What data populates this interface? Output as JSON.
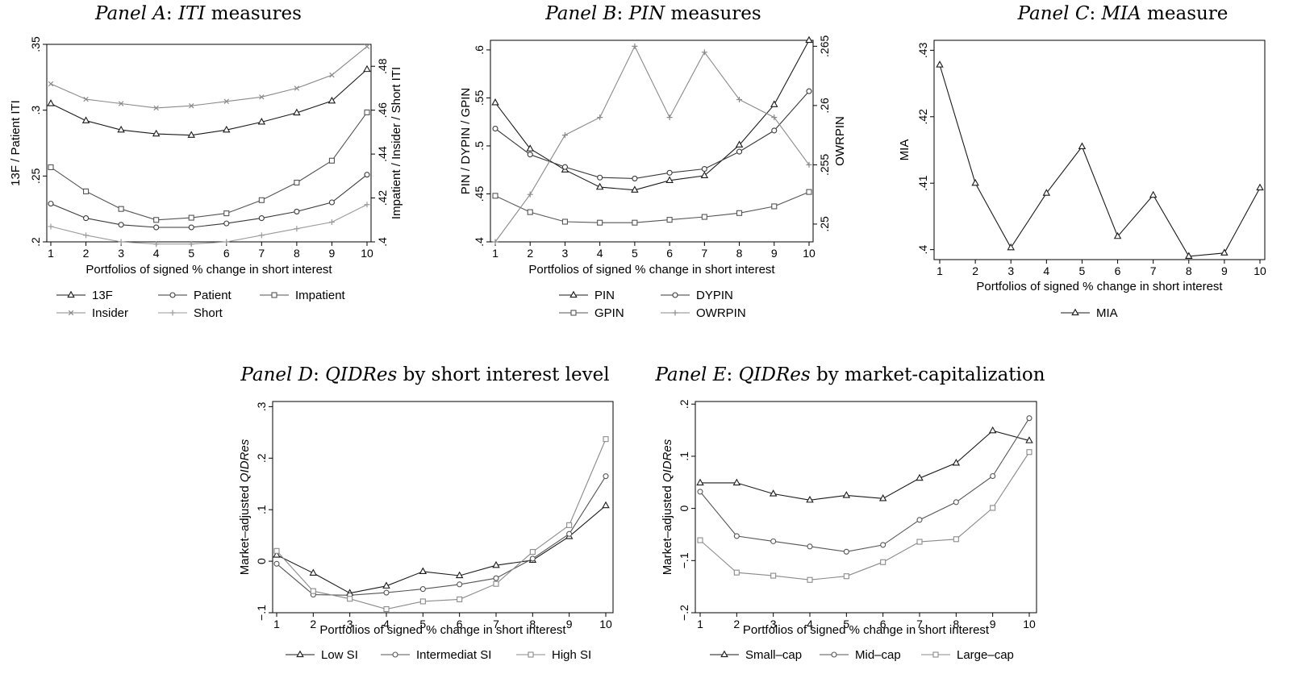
{
  "chart_data": [
    {
      "id": "A",
      "type": "line",
      "title_parts": [
        [
          "Panel A",
          true
        ],
        [
          ": ",
          false
        ],
        [
          "ITI",
          true
        ],
        [
          " measures",
          false
        ]
      ],
      "xlabel": "Portfolios of signed % change in short interest",
      "ylabel": "13F / Patient ITI",
      "y2label": "Impatient / Insider / Short ITI",
      "x": [
        1,
        2,
        3,
        4,
        5,
        6,
        7,
        8,
        9,
        10
      ],
      "xticks": [
        "1",
        "2",
        "3",
        "4",
        "5",
        "6",
        "7",
        "8",
        "9",
        "10"
      ],
      "ylim": [
        0.2,
        0.35
      ],
      "yticks": [
        [
          0.2,
          ".2"
        ],
        [
          0.25,
          ".25"
        ],
        [
          0.3,
          ".3"
        ],
        [
          0.35,
          ".35"
        ]
      ],
      "y2lim": [
        0.4,
        0.49
      ],
      "y2ticks": [
        [
          0.4,
          ".4"
        ],
        [
          0.42,
          ".42"
        ],
        [
          0.44,
          ".44"
        ],
        [
          0.46,
          ".46"
        ],
        [
          0.48,
          ".48"
        ]
      ],
      "series": [
        {
          "name": "13F",
          "marker": "triangle",
          "color": "#1a1a1a",
          "axis": "left",
          "values": [
            0.305,
            0.292,
            0.285,
            0.282,
            0.281,
            0.285,
            0.291,
            0.298,
            0.307,
            0.331
          ]
        },
        {
          "name": "Patient",
          "marker": "circle",
          "color": "#3a3a3a",
          "axis": "left",
          "values": [
            0.229,
            0.218,
            0.213,
            0.211,
            0.211,
            0.214,
            0.218,
            0.223,
            0.23,
            0.251
          ]
        },
        {
          "name": "Impatient",
          "marker": "square",
          "color": "#555555",
          "axis": "right",
          "values": [
            0.434,
            0.423,
            0.415,
            0.41,
            0.411,
            0.413,
            0.419,
            0.427,
            0.437,
            0.459
          ]
        },
        {
          "name": "Insider",
          "marker": "x",
          "color": "#8a8a8a",
          "axis": "right",
          "values": [
            0.472,
            0.465,
            0.463,
            0.461,
            0.462,
            0.464,
            0.466,
            0.47,
            0.476,
            0.489
          ]
        },
        {
          "name": "Short",
          "marker": "plus",
          "color": "#9a9a9a",
          "axis": "right",
          "values": [
            0.407,
            0.403,
            0.4,
            0.399,
            0.399,
            0.4,
            0.403,
            0.406,
            0.409,
            0.417
          ]
        }
      ],
      "legend_rows": [
        [
          "13F",
          "Patient",
          "Impatient"
        ],
        [
          "Insider",
          "Short"
        ]
      ]
    },
    {
      "id": "B",
      "type": "line",
      "title_parts": [
        [
          "Panel B",
          true
        ],
        [
          ": ",
          false
        ],
        [
          "PIN",
          true
        ],
        [
          " measures",
          false
        ]
      ],
      "xlabel": "Portfolios of signed % change in short interest",
      "ylabel": "PIN / DYPIN / GPIN",
      "y2label": "OWRPIN",
      "x": [
        1,
        2,
        3,
        4,
        5,
        6,
        7,
        8,
        9,
        10
      ],
      "xticks": [
        "1",
        "2",
        "3",
        "4",
        "5",
        "6",
        "7",
        "8",
        "9",
        "10"
      ],
      "ylim": [
        0.4,
        0.61
      ],
      "yticks": [
        [
          0.4,
          ".4"
        ],
        [
          0.45,
          ".45"
        ],
        [
          0.5,
          ".5"
        ],
        [
          0.55,
          ".55"
        ],
        [
          0.6,
          ".6"
        ]
      ],
      "y2lim": [
        0.2485,
        0.2655
      ],
      "y2ticks": [
        [
          0.25,
          ".25"
        ],
        [
          0.255,
          ".255"
        ],
        [
          0.26,
          ".26"
        ],
        [
          0.265,
          ".265"
        ]
      ],
      "series": [
        {
          "name": "PIN",
          "marker": "triangle",
          "color": "#1a1a1a",
          "axis": "left",
          "values": [
            0.545,
            0.497,
            0.475,
            0.457,
            0.454,
            0.464,
            0.469,
            0.501,
            0.543,
            0.61
          ]
        },
        {
          "name": "DYPIN",
          "marker": "circle",
          "color": "#3a3a3a",
          "axis": "left",
          "values": [
            0.518,
            0.491,
            0.478,
            0.467,
            0.466,
            0.472,
            0.476,
            0.494,
            0.516,
            0.557
          ]
        },
        {
          "name": "GPIN",
          "marker": "square",
          "color": "#555555",
          "axis": "left",
          "values": [
            0.448,
            0.431,
            0.421,
            0.42,
            0.42,
            0.423,
            0.426,
            0.43,
            0.437,
            0.452
          ]
        },
        {
          "name": "OWRPIN",
          "marker": "plus",
          "color": "#8a8a8a",
          "axis": "right",
          "values": [
            0.2485,
            0.2525,
            0.2575,
            0.259,
            0.265,
            0.259,
            0.2645,
            0.2605,
            0.259,
            0.255
          ]
        }
      ],
      "legend_rows": [
        [
          "PIN",
          "DYPIN"
        ],
        [
          "GPIN",
          "OWRPIN"
        ]
      ]
    },
    {
      "id": "C",
      "type": "line",
      "title_parts": [
        [
          "Panel C",
          true
        ],
        [
          ": ",
          false
        ],
        [
          "MIA",
          true
        ],
        [
          " measure",
          false
        ]
      ],
      "xlabel": "Portfolios of signed % change in short interest",
      "ylabel": "MIA",
      "x": [
        1,
        2,
        3,
        4,
        5,
        6,
        7,
        8,
        9,
        10
      ],
      "xticks": [
        "1",
        "2",
        "3",
        "4",
        "5",
        "6",
        "7",
        "8",
        "9",
        "10"
      ],
      "ylim": [
        0.3985,
        0.4315
      ],
      "yticks": [
        [
          0.4,
          ".4"
        ],
        [
          0.41,
          ".41"
        ],
        [
          0.42,
          ".42"
        ],
        [
          0.43,
          ".43"
        ]
      ],
      "series": [
        {
          "name": "MIA",
          "marker": "triangle",
          "color": "#1a1a1a",
          "axis": "left",
          "values": [
            0.4278,
            0.41,
            0.4003,
            0.4085,
            0.4155,
            0.402,
            0.4082,
            0.399,
            0.3995,
            0.4093
          ]
        }
      ],
      "legend_rows": [
        [
          "MIA"
        ]
      ]
    },
    {
      "id": "D",
      "type": "line",
      "title_parts": [
        [
          "Panel D",
          true
        ],
        [
          ": ",
          false
        ],
        [
          "QIDRes",
          true
        ],
        [
          " by short interest level",
          false
        ]
      ],
      "xlabel": "Portfolios of signed % change in short interest",
      "ylabel_parts": [
        [
          "Market–adjusted ",
          false
        ],
        [
          "QIDRes",
          true
        ]
      ],
      "x": [
        1,
        2,
        3,
        4,
        5,
        6,
        7,
        8,
        9,
        10
      ],
      "xticks": [
        "1",
        "2",
        "3",
        "4",
        "5",
        "6",
        "7",
        "8",
        "9",
        "10"
      ],
      "ylim": [
        -0.1,
        0.31
      ],
      "yticks": [
        [
          -0.1,
          "−.1"
        ],
        [
          0,
          "0"
        ],
        [
          0.1,
          ".1"
        ],
        [
          0.2,
          ".2"
        ],
        [
          0.3,
          ".3"
        ]
      ],
      "series": [
        {
          "name": "Low SI",
          "marker": "triangle",
          "color": "#1a1a1a",
          "axis": "left",
          "values": [
            0.012,
            -0.023,
            -0.062,
            -0.048,
            -0.02,
            -0.028,
            -0.008,
            0.002,
            0.048,
            0.108
          ]
        },
        {
          "name": "Intermediat SI",
          "marker": "circle",
          "color": "#555555",
          "axis": "left",
          "values": [
            -0.005,
            -0.065,
            -0.066,
            -0.061,
            -0.054,
            -0.045,
            -0.033,
            0.005,
            0.053,
            0.165
          ]
        },
        {
          "name": "High SI",
          "marker": "square",
          "color": "#8a8a8a",
          "axis": "left",
          "values": [
            0.02,
            -0.058,
            -0.073,
            -0.093,
            -0.078,
            -0.074,
            -0.044,
            0.018,
            0.07,
            0.237
          ]
        }
      ],
      "legend_rows": [
        [
          "Low SI",
          "Intermediat SI",
          "High SI"
        ]
      ]
    },
    {
      "id": "E",
      "type": "line",
      "title_parts": [
        [
          "Panel E",
          true
        ],
        [
          ": ",
          false
        ],
        [
          "QIDRes",
          true
        ],
        [
          " by market-capitalization",
          false
        ]
      ],
      "xlabel": "Portfolios of signed % change in short interest",
      "ylabel_parts": [
        [
          "Market–adjusted ",
          false
        ],
        [
          "QIDRes",
          true
        ]
      ],
      "x": [
        1,
        2,
        3,
        4,
        5,
        6,
        7,
        8,
        9,
        10
      ],
      "xticks": [
        "1",
        "2",
        "3",
        "4",
        "5",
        "6",
        "7",
        "8",
        "9",
        "10"
      ],
      "ylim": [
        -0.2,
        0.205
      ],
      "yticks": [
        [
          -0.2,
          "−.2"
        ],
        [
          -0.1,
          "−.1"
        ],
        [
          0,
          "0"
        ],
        [
          0.1,
          ".1"
        ],
        [
          0.2,
          ".2"
        ]
      ],
      "series": [
        {
          "name": "Small–cap",
          "marker": "triangle",
          "color": "#1a1a1a",
          "axis": "left",
          "values": [
            0.049,
            0.049,
            0.028,
            0.016,
            0.025,
            0.019,
            0.058,
            0.087,
            0.149,
            0.13
          ]
        },
        {
          "name": "Mid–cap",
          "marker": "circle",
          "color": "#555555",
          "axis": "left",
          "values": [
            0.032,
            -0.053,
            -0.063,
            -0.073,
            -0.083,
            -0.07,
            -0.022,
            0.012,
            0.062,
            0.173
          ]
        },
        {
          "name": "Large–cap",
          "marker": "square",
          "color": "#8a8a8a",
          "axis": "left",
          "values": [
            -0.061,
            -0.123,
            -0.129,
            -0.137,
            -0.13,
            -0.103,
            -0.064,
            -0.059,
            0.001,
            0.108
          ]
        }
      ],
      "legend_rows": [
        [
          "Small–cap",
          "Mid–cap",
          "Large–cap"
        ]
      ]
    }
  ]
}
